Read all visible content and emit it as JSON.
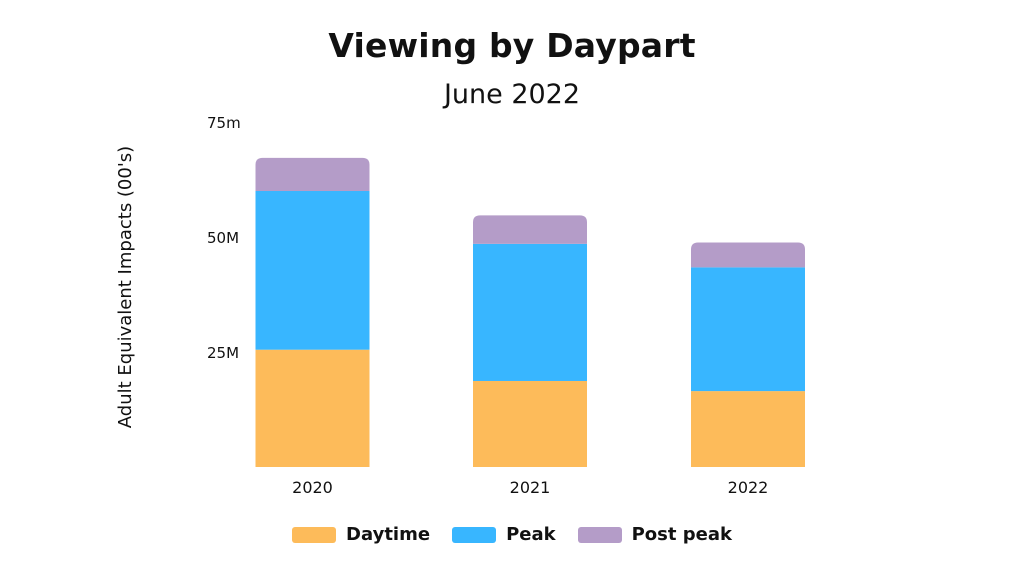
{
  "chart_data": {
    "type": "bar",
    "stacked": true,
    "title": "Viewing by Daypart",
    "subtitle": "June 2022",
    "ylabel": "Adult Equivalent Impacts (00's)",
    "ylim": [
      0,
      75
    ],
    "yticks": [
      {
        "value": 25,
        "label": "25M"
      },
      {
        "value": 50,
        "label": "50M"
      },
      {
        "value": 75,
        "label": "75m"
      }
    ],
    "categories": [
      "2020",
      "2021",
      "2022"
    ],
    "series": [
      {
        "name": "Daytime",
        "color": "#FDBB5A",
        "values": [
          25.5,
          18.7,
          16.5
        ]
      },
      {
        "name": "Peak",
        "color": "#38B6FF",
        "values": [
          34.5,
          29.8,
          26.9
        ]
      },
      {
        "name": "Post peak",
        "color": "#B49CC8",
        "values": [
          7.2,
          6.2,
          5.4
        ]
      }
    ],
    "grid": false,
    "legend_position": "bottom"
  }
}
